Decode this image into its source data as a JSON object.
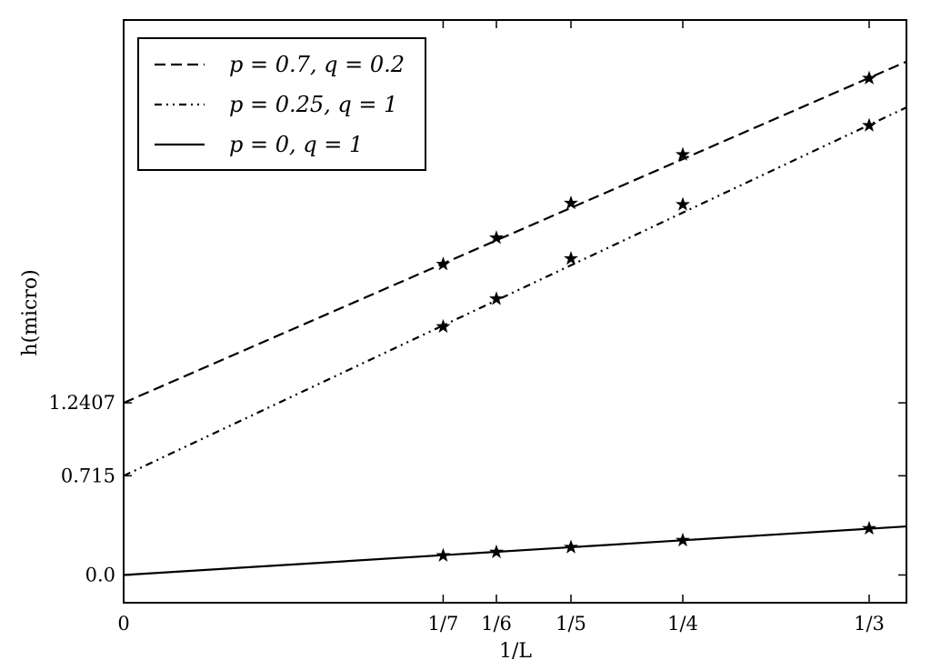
{
  "chart_data": {
    "type": "line",
    "xlabel": "1/L",
    "ylabel": "h(micro)",
    "xlim": [
      0,
      0.35
    ],
    "ylim": [
      -0.2,
      4.0
    ],
    "x_ticks": [
      {
        "value": 0,
        "label": "0"
      },
      {
        "value": 0.142857,
        "label": "1/7"
      },
      {
        "value": 0.166667,
        "label": "1/6"
      },
      {
        "value": 0.2,
        "label": "1/5"
      },
      {
        "value": 0.25,
        "label": "1/4"
      },
      {
        "value": 0.333333,
        "label": "1/3"
      }
    ],
    "y_ticks": [
      {
        "value": 0.0,
        "label": "0.0"
      },
      {
        "value": 0.715,
        "label": "0.715"
      },
      {
        "value": 1.2407,
        "label": "1.2407"
      }
    ],
    "grid": false,
    "legend_position": "top-left",
    "series": [
      {
        "name": "p = 0.7, q = 0.2",
        "style": "dashed",
        "color": "#000000",
        "fit": {
          "x": [
            0,
            0.35
          ],
          "y": [
            1.2407,
            3.7
          ]
        },
        "points": {
          "x": [
            0.142857,
            0.166667,
            0.2,
            0.25,
            0.333333
          ],
          "y": [
            2.24,
            2.43,
            2.68,
            3.03,
            3.58
          ]
        }
      },
      {
        "name": "p = 0.25, q = 1",
        "style": "dashdotdot",
        "color": "#000000",
        "fit": {
          "x": [
            0,
            0.35
          ],
          "y": [
            0.715,
            3.37
          ]
        },
        "points": {
          "x": [
            0.142857,
            0.166667,
            0.2,
            0.25,
            0.333333
          ],
          "y": [
            1.79,
            1.99,
            2.28,
            2.67,
            3.24
          ]
        }
      },
      {
        "name": "p = 0, q = 1",
        "style": "solid",
        "color": "#000000",
        "fit": {
          "x": [
            0,
            0.35
          ],
          "y": [
            0.0,
            0.35
          ]
        },
        "points": {
          "x": [
            0.142857,
            0.166667,
            0.2,
            0.25,
            0.333333
          ],
          "y": [
            0.14,
            0.165,
            0.2,
            0.25,
            0.335
          ]
        }
      }
    ]
  }
}
